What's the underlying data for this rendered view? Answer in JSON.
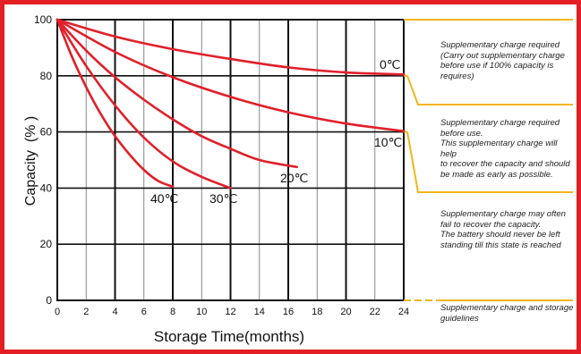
{
  "chart_data": {
    "type": "line",
    "xlabel": "Storage Time(months)",
    "ylabel": "Capacity  (% )",
    "xlim": [
      0,
      24
    ],
    "ylim": [
      0,
      100
    ],
    "x_ticks": [
      "0",
      "2",
      "4",
      "6",
      "8",
      "10",
      "12",
      "14",
      "16",
      "18",
      "20",
      "22",
      "24"
    ],
    "y_ticks": [
      "0",
      "20",
      "40",
      "60",
      "80",
      "100"
    ],
    "grid": true,
    "series": [
      {
        "name": "0℃",
        "x": [
          0,
          4,
          8,
          12,
          16,
          20,
          24
        ],
        "values": [
          100,
          94,
          89.5,
          86,
          83,
          81.2,
          80.5
        ]
      },
      {
        "name": "10℃",
        "x": [
          0,
          4,
          8,
          12,
          16,
          20,
          24
        ],
        "values": [
          100,
          88.5,
          79.5,
          72.5,
          67,
          63,
          60.3
        ]
      },
      {
        "name": "20℃",
        "x": [
          0,
          2,
          4,
          6,
          8,
          10,
          12,
          14,
          16.6
        ],
        "values": [
          100,
          89,
          79.5,
          71.5,
          64.5,
          58.5,
          54,
          50,
          47.5
        ]
      },
      {
        "name": "30℃",
        "x": [
          0,
          2,
          4,
          6,
          8,
          10,
          12
        ],
        "values": [
          100,
          83.5,
          69.5,
          58,
          49.5,
          44,
          40
        ]
      },
      {
        "name": "40℃",
        "x": [
          0,
          1,
          2,
          3,
          4,
          5,
          6,
          7,
          8
        ],
        "values": [
          100,
          87,
          76,
          66.5,
          58.5,
          52,
          46.5,
          42.5,
          40.5
        ]
      }
    ]
  },
  "notes": [
    {
      "text": "Supplementary charge required\n(Carry out supplementary charge\nbefore use if 100% capacity is\nrequires)"
    },
    {
      "text": "Supplementary charge required\nbefore use.\nThis supplementary charge will help\nto recover the capacity and should\nbe made  as early as possible."
    },
    {
      "text": "Supplementary charge may often\nfail to recover the capacity.\nThe battery should never be left\nstanding till this state is reached"
    },
    {
      "text": "Supplementary charge and storage\nguidelines"
    }
  ],
  "colors": {
    "frame": "#e31e24",
    "curve": "#e0202a",
    "bracket": "#f2b51c",
    "grid": "#111111"
  }
}
